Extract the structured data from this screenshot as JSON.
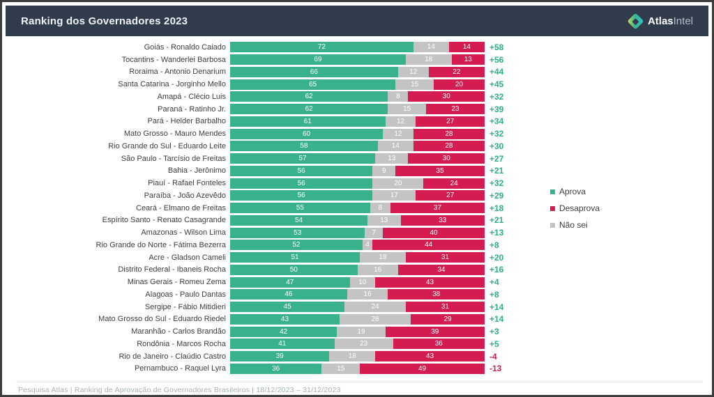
{
  "header": {
    "title": "Ranking dos Governadores 2023",
    "brand_bold": "Atlas",
    "brand_light": "Intel"
  },
  "legend": [
    {
      "label": "Aprova",
      "color": "#38b18c"
    },
    {
      "label": "Desaprova",
      "color": "#d41c50"
    },
    {
      "label": "Não sei",
      "color": "#c4c4c4"
    }
  ],
  "footer": {
    "text": "Pesquisa Atlas  |  Ranking de Aprovação de Governadores Brasileiros  |  18/12/2023 – 31/12/2023"
  },
  "chart_data": {
    "type": "bar",
    "orientation": "horizontal",
    "stacked": true,
    "title": "Ranking dos Governadores 2023",
    "xlim": [
      0,
      100
    ],
    "grid": false,
    "legend_position": "right",
    "categories": [
      "Goiás - Ronaldo Caiado",
      "Tocantins - Wanderlei Barbosa",
      "Roraima - Antonio Denarium",
      "Santa Catarina - Jorginho Mello",
      "Amapá - Clécio Luis",
      "Paraná - Ratinho Jr.",
      "Pará - Helder Barbalho",
      "Mato Grosso - Mauro Mendes",
      "Rio Grande do Sul - Eduardo Leite",
      "São Paulo - Tarcísio de Freitas",
      "Bahia - Jerônimo",
      "Piauí - Rafael Fonteles",
      "Paraíba - João Azevêdo",
      "Ceará - Elmano de Freitas",
      "Espírito Santo - Renato Casagrande",
      "Amazonas - Wilson Lima",
      "Rio Grande do Norte - Fátima Bezerra",
      "Acre - Gladson Cameli",
      "Distrito Federal - Ibaneis Rocha",
      "Minas Gerais - Romeu Zema",
      "Alagoas - Paulo Dantas",
      "Sergipe - Fábio Mitidieri",
      "Mato Grosso do Sul - Eduardo Riedel",
      "Maranhão - Carlos Brandão",
      "Rondônia - Marcos Rocha",
      "Rio de Janeiro - Claúdio Castro",
      "Pernambuco - Raquel Lyra"
    ],
    "series": [
      {
        "name": "Aprova",
        "color": "#38b18c",
        "values": [
          72,
          69,
          66,
          65,
          62,
          62,
          61,
          60,
          58,
          57,
          56,
          56,
          56,
          55,
          54,
          53,
          52,
          51,
          50,
          47,
          46,
          45,
          43,
          42,
          41,
          39,
          36
        ]
      },
      {
        "name": "Não sei",
        "color": "#c4c4c4",
        "values": [
          14,
          18,
          12,
          15,
          8,
          15,
          12,
          12,
          14,
          13,
          9,
          20,
          17,
          8,
          13,
          7,
          4,
          18,
          16,
          10,
          16,
          24,
          28,
          19,
          23,
          18,
          15
        ]
      },
      {
        "name": "Desaprova",
        "color": "#d41c50",
        "values": [
          14,
          13,
          22,
          20,
          30,
          23,
          27,
          28,
          28,
          30,
          35,
          24,
          27,
          37,
          33,
          40,
          44,
          31,
          34,
          43,
          38,
          31,
          29,
          39,
          36,
          43,
          49
        ]
      }
    ],
    "net_scores": [
      "+58",
      "+56",
      "+44",
      "+45",
      "+32",
      "+39",
      "+34",
      "+32",
      "+30",
      "+27",
      "+21",
      "+32",
      "+29",
      "+18",
      "+21",
      "+13",
      "+8",
      "+20",
      "+16",
      "+4",
      "+8",
      "+14",
      "+14",
      "+3",
      "+5",
      "-4",
      "-13"
    ],
    "net_positive_color": "#2fae89",
    "net_negative_color": "#d41c50"
  }
}
